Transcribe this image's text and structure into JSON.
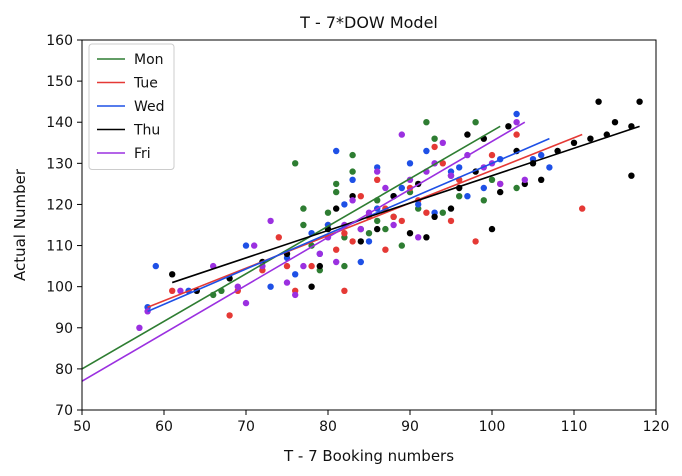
{
  "chart_data": {
    "type": "scatter",
    "title": "T - 7*DOW Model",
    "xlabel": "T - 7 Booking numbers",
    "ylabel": "Actual Number",
    "xlim": [
      50,
      120
    ],
    "ylim": [
      70,
      160
    ],
    "xticks": [
      50,
      60,
      70,
      80,
      90,
      100,
      110,
      120
    ],
    "yticks": [
      70,
      80,
      90,
      100,
      110,
      120,
      130,
      140,
      150,
      160
    ],
    "grid": false,
    "legend_position": "top-left",
    "series": [
      {
        "name": "Mon",
        "color": "#2e7d32",
        "points": [
          [
            66,
            98
          ],
          [
            67,
            99
          ],
          [
            76,
            130
          ],
          [
            77,
            115
          ],
          [
            77,
            119
          ],
          [
            78,
            110
          ],
          [
            79,
            104
          ],
          [
            80,
            118
          ],
          [
            81,
            125
          ],
          [
            81,
            123
          ],
          [
            82,
            112
          ],
          [
            82,
            105
          ],
          [
            83,
            132
          ],
          [
            83,
            128
          ],
          [
            84,
            114
          ],
          [
            85,
            113
          ],
          [
            86,
            121
          ],
          [
            86,
            116
          ],
          [
            87,
            114
          ],
          [
            88,
            117
          ],
          [
            89,
            110
          ],
          [
            90,
            123
          ],
          [
            91,
            119
          ],
          [
            92,
            140
          ],
          [
            93,
            136
          ],
          [
            94,
            118
          ],
          [
            95,
            127
          ],
          [
            96,
            122
          ],
          [
            98,
            140
          ],
          [
            99,
            121
          ],
          [
            100,
            126
          ],
          [
            103,
            124
          ]
        ],
        "fit": [
          [
            50,
            80
          ],
          [
            101,
            139
          ]
        ]
      },
      {
        "name": "Tue",
        "color": "#e53935",
        "points": [
          [
            61,
            99
          ],
          [
            68,
            93
          ],
          [
            69,
            99
          ],
          [
            72,
            104
          ],
          [
            74,
            112
          ],
          [
            75,
            105
          ],
          [
            76,
            99
          ],
          [
            78,
            105
          ],
          [
            80,
            115
          ],
          [
            81,
            109
          ],
          [
            82,
            99
          ],
          [
            82,
            113
          ],
          [
            83,
            111
          ],
          [
            84,
            122
          ],
          [
            85,
            117
          ],
          [
            86,
            126
          ],
          [
            87,
            119
          ],
          [
            87,
            109
          ],
          [
            88,
            117
          ],
          [
            89,
            116
          ],
          [
            90,
            124
          ],
          [
            91,
            121
          ],
          [
            92,
            118
          ],
          [
            93,
            134
          ],
          [
            94,
            130
          ],
          [
            95,
            116
          ],
          [
            96,
            126
          ],
          [
            98,
            111
          ],
          [
            100,
            132
          ],
          [
            101,
            125
          ],
          [
            103,
            137
          ],
          [
            111,
            119
          ]
        ],
        "fit": [
          [
            58,
            95
          ],
          [
            111,
            137
          ]
        ]
      },
      {
        "name": "Wed",
        "color": "#1e50e6",
        "points": [
          [
            58,
            95
          ],
          [
            59,
            105
          ],
          [
            63,
            99
          ],
          [
            70,
            110
          ],
          [
            73,
            100
          ],
          [
            75,
            107
          ],
          [
            76,
            103
          ],
          [
            78,
            113
          ],
          [
            79,
            108
          ],
          [
            80,
            115
          ],
          [
            81,
            133
          ],
          [
            82,
            120
          ],
          [
            83,
            126
          ],
          [
            84,
            106
          ],
          [
            85,
            111
          ],
          [
            86,
            119
          ],
          [
            86,
            129
          ],
          [
            88,
            122
          ],
          [
            89,
            124
          ],
          [
            90,
            130
          ],
          [
            91,
            120
          ],
          [
            92,
            133
          ],
          [
            93,
            118
          ],
          [
            95,
            128
          ],
          [
            96,
            129
          ],
          [
            97,
            122
          ],
          [
            99,
            124
          ],
          [
            101,
            131
          ],
          [
            103,
            142
          ],
          [
            105,
            131
          ],
          [
            106,
            132
          ],
          [
            107,
            129
          ]
        ],
        "fit": [
          [
            58,
            94
          ],
          [
            107,
            136
          ]
        ]
      },
      {
        "name": "Thu",
        "color": "#000000",
        "points": [
          [
            61,
            103
          ],
          [
            64,
            99
          ],
          [
            68,
            102
          ],
          [
            72,
            106
          ],
          [
            75,
            108
          ],
          [
            78,
            100
          ],
          [
            79,
            105
          ],
          [
            80,
            114
          ],
          [
            81,
            119
          ],
          [
            83,
            122
          ],
          [
            84,
            111
          ],
          [
            86,
            114
          ],
          [
            88,
            122
          ],
          [
            90,
            113
          ],
          [
            91,
            125
          ],
          [
            92,
            112
          ],
          [
            93,
            117
          ],
          [
            95,
            119
          ],
          [
            96,
            124
          ],
          [
            97,
            137
          ],
          [
            98,
            128
          ],
          [
            99,
            136
          ],
          [
            100,
            114
          ],
          [
            101,
            123
          ],
          [
            102,
            139
          ],
          [
            103,
            133
          ],
          [
            104,
            125
          ],
          [
            105,
            130
          ],
          [
            106,
            126
          ],
          [
            108,
            133
          ],
          [
            110,
            135
          ],
          [
            112,
            136
          ],
          [
            113,
            145
          ],
          [
            114,
            137
          ],
          [
            115,
            140
          ],
          [
            117,
            127
          ],
          [
            117,
            139
          ],
          [
            118,
            145
          ]
        ],
        "fit": [
          [
            61,
            101
          ],
          [
            118,
            139
          ]
        ]
      },
      {
        "name": "Fri",
        "color": "#9b30e0",
        "points": [
          [
            57,
            90
          ],
          [
            58,
            94
          ],
          [
            62,
            99
          ],
          [
            66,
            105
          ],
          [
            69,
            100
          ],
          [
            70,
            96
          ],
          [
            71,
            110
          ],
          [
            72,
            105
          ],
          [
            73,
            116
          ],
          [
            75,
            101
          ],
          [
            76,
            98
          ],
          [
            77,
            105
          ],
          [
            79,
            108
          ],
          [
            80,
            112
          ],
          [
            81,
            106
          ],
          [
            82,
            115
          ],
          [
            83,
            121
          ],
          [
            84,
            114
          ],
          [
            85,
            118
          ],
          [
            86,
            128
          ],
          [
            87,
            124
          ],
          [
            88,
            115
          ],
          [
            89,
            137
          ],
          [
            90,
            126
          ],
          [
            91,
            112
          ],
          [
            92,
            128
          ],
          [
            93,
            130
          ],
          [
            94,
            135
          ],
          [
            95,
            127
          ],
          [
            97,
            132
          ],
          [
            99,
            129
          ],
          [
            100,
            130
          ],
          [
            101,
            125
          ],
          [
            103,
            140
          ],
          [
            104,
            126
          ]
        ],
        "fit": [
          [
            50,
            77
          ],
          [
            104,
            140
          ]
        ]
      }
    ]
  }
}
